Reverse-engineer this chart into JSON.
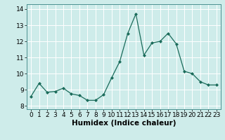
{
  "x": [
    0,
    1,
    2,
    3,
    4,
    5,
    6,
    7,
    8,
    9,
    10,
    11,
    12,
    13,
    14,
    15,
    16,
    17,
    18,
    19,
    20,
    21,
    22,
    23
  ],
  "y": [
    8.6,
    9.4,
    8.85,
    8.9,
    9.1,
    8.75,
    8.65,
    8.35,
    8.35,
    8.7,
    9.75,
    10.75,
    12.5,
    13.7,
    11.15,
    11.9,
    12.0,
    12.5,
    11.85,
    10.15,
    10.0,
    9.5,
    9.3,
    9.3
  ],
  "line_color": "#1a6b5a",
  "marker": "D",
  "markersize": 2.0,
  "linewidth": 0.9,
  "xlabel": "Humidex (Indice chaleur)",
  "ylim": [
    7.8,
    14.3
  ],
  "xlim": [
    -0.5,
    23.5
  ],
  "yticks": [
    8,
    9,
    10,
    11,
    12,
    13,
    14
  ],
  "xticks": [
    0,
    1,
    2,
    3,
    4,
    5,
    6,
    7,
    8,
    9,
    10,
    11,
    12,
    13,
    14,
    15,
    16,
    17,
    18,
    19,
    20,
    21,
    22,
    23
  ],
  "bg_color": "#ceecea",
  "grid_color": "#ffffff",
  "xlabel_fontsize": 7.5,
  "tick_fontsize": 6.5,
  "spine_color": "#4a9090"
}
